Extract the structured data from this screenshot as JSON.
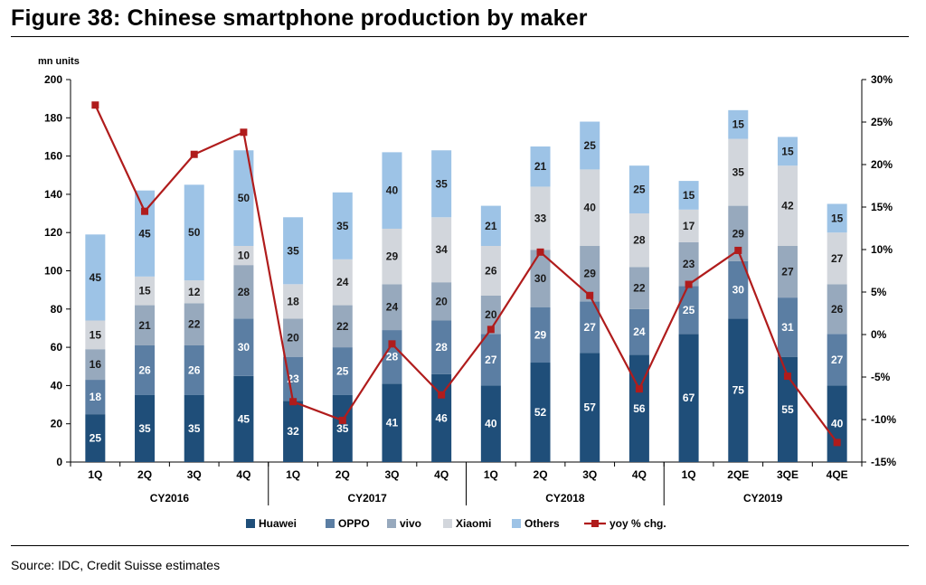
{
  "title": "Figure 38: Chinese smartphone production by maker",
  "source": "Source: IDC, Credit Suisse estimates",
  "chart_data": {
    "type": "bar",
    "stacked": true,
    "y_unit_label": "mn units",
    "ylim": [
      0,
      200
    ],
    "yticks": [
      0,
      20,
      40,
      60,
      80,
      100,
      120,
      140,
      160,
      180,
      200
    ],
    "y2lim": [
      -15,
      30
    ],
    "y2ticks": [
      "-15%",
      "-10%",
      "-5%",
      "0%",
      "5%",
      "10%",
      "15%",
      "20%",
      "25%",
      "30%"
    ],
    "y2tick_values": [
      -15,
      -10,
      -5,
      0,
      5,
      10,
      15,
      20,
      25,
      30
    ],
    "categories": [
      "1Q",
      "2Q",
      "3Q",
      "4Q",
      "1Q",
      "2Q",
      "3Q",
      "4Q",
      "1Q",
      "2Q",
      "3Q",
      "4Q",
      "1Q",
      "2QE",
      "3QE",
      "4QE"
    ],
    "groups": [
      {
        "label": "CY2016",
        "start": 0,
        "count": 4
      },
      {
        "label": "CY2017",
        "start": 4,
        "count": 4
      },
      {
        "label": "CY2018",
        "start": 8,
        "count": 4
      },
      {
        "label": "CY2019",
        "start": 12,
        "count": 4
      }
    ],
    "series": [
      {
        "name": "Huawei",
        "color": "#1f4e79",
        "values": [
          25,
          35,
          35,
          45,
          32,
          35,
          41,
          46,
          40,
          52,
          57,
          56,
          67,
          75,
          55,
          40
        ]
      },
      {
        "name": "OPPO",
        "color": "#5b7ea3",
        "values": [
          18,
          26,
          26,
          30,
          23,
          25,
          28,
          28,
          27,
          29,
          27,
          24,
          25,
          30,
          31,
          27
        ]
      },
      {
        "name": "vivo",
        "color": "#97a9bd",
        "values": [
          16,
          21,
          22,
          28,
          20,
          22,
          24,
          20,
          20,
          30,
          29,
          22,
          23,
          29,
          27,
          26
        ]
      },
      {
        "name": "Xiaomi",
        "color": "#d2d6dc",
        "values": [
          15,
          15,
          12,
          10,
          18,
          24,
          29,
          34,
          26,
          33,
          40,
          28,
          17,
          35,
          42,
          27
        ]
      },
      {
        "name": "Others",
        "color": "#9dc3e6",
        "values": [
          45,
          45,
          50,
          50,
          35,
          35,
          40,
          35,
          21,
          21,
          25,
          25,
          15,
          15,
          15,
          15
        ]
      }
    ],
    "line_series": {
      "name": "yoy % chg.",
      "color": "#b01c1c",
      "axis": "right",
      "values": [
        27,
        14.5,
        21.2,
        23.8,
        -7.9,
        -10.1,
        -1.1,
        -7.1,
        0.6,
        9.7,
        4.6,
        -6.4,
        5.9,
        9.9,
        -4.9,
        -12.7
      ]
    },
    "legend": {
      "position": "bottom",
      "entries": [
        "Huawei",
        "OPPO",
        "vivo",
        "Xiaomi",
        "Others",
        "yoy % chg."
      ]
    }
  }
}
